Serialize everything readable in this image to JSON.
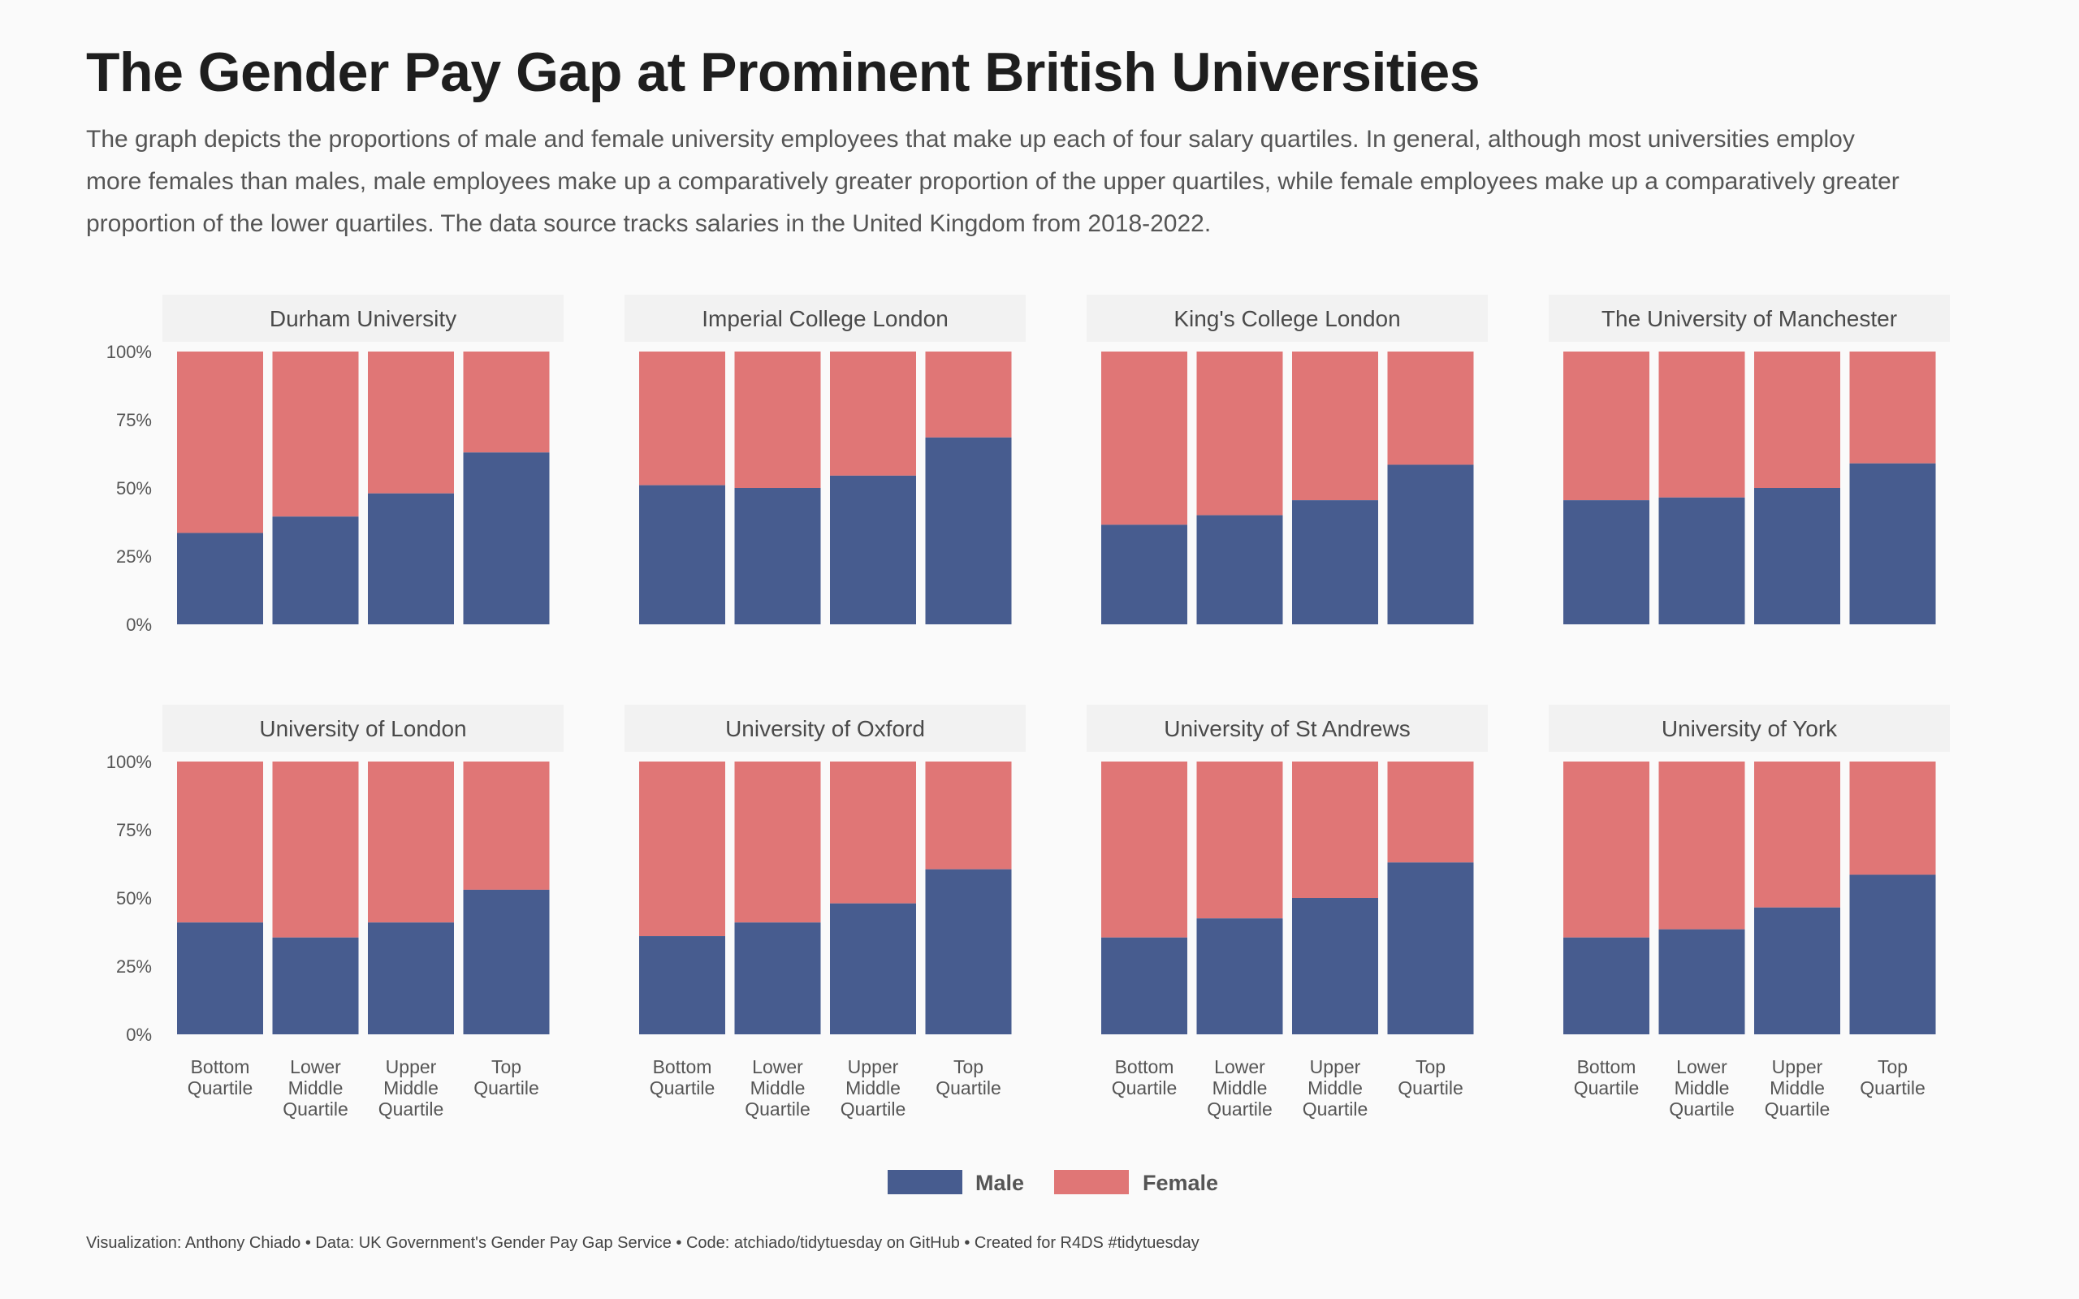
{
  "title": "The Gender Pay Gap at Prominent British Universities",
  "subtitle": "The graph depicts the proportions of male and female university employees that make up each of four salary quartiles. In general, although most universities employ more females than males, male employees make up a comparatively greater proportion of the upper quartiles, while female employees make up a comparatively greater proportion of the lower quartiles. The data source tracks salaries in the United Kingdom from 2018-2022.",
  "caption": "Visualization: Anthony Chiado  •  Data: UK Government's Gender Pay Gap Service  •  Code: atchiado/tidytuesday on GitHub  • Created for R4DS #tidytuesday",
  "colors": {
    "male": "#475c8f",
    "female": "#e07676",
    "strip": "#f2f2f2",
    "text": "#555555"
  },
  "chart_data": {
    "type": "bar",
    "stacked": true,
    "normalized": true,
    "categories": [
      [
        "Bottom",
        "Quartile"
      ],
      [
        "Lower",
        "Middle",
        "Quartile"
      ],
      [
        "Upper",
        "Middle",
        "Quartile"
      ],
      [
        "Top",
        "Quartile"
      ]
    ],
    "yticks": [
      "0%",
      "25%",
      "50%",
      "75%",
      "100%"
    ],
    "ylim": [
      0,
      100
    ],
    "legend": {
      "position": "bottom",
      "entries": [
        "Male",
        "Female"
      ]
    },
    "panels": [
      {
        "name": "Durham University",
        "male": [
          33.5,
          39.5,
          48,
          63
        ],
        "female": [
          66.5,
          60.5,
          52,
          37
        ]
      },
      {
        "name": "Imperial College London",
        "male": [
          51,
          50,
          54.5,
          68.5
        ],
        "female": [
          49,
          50,
          45.5,
          31.5
        ]
      },
      {
        "name": "King's College London",
        "male": [
          36.5,
          40,
          45.5,
          58.5
        ],
        "female": [
          63.5,
          60,
          54.5,
          41.5
        ]
      },
      {
        "name": "The University of Manchester",
        "male": [
          45.5,
          46.5,
          50,
          59
        ],
        "female": [
          54.5,
          53.5,
          50,
          41
        ]
      },
      {
        "name": "University of London",
        "male": [
          41,
          35.5,
          41,
          53
        ],
        "female": [
          59,
          64.5,
          59,
          47
        ]
      },
      {
        "name": "University of Oxford",
        "male": [
          36,
          41,
          48,
          60.5
        ],
        "female": [
          64,
          59,
          52,
          39.5
        ]
      },
      {
        "name": "University of St Andrews",
        "male": [
          35.5,
          42.5,
          50,
          63
        ],
        "female": [
          64.5,
          57.5,
          50,
          37
        ]
      },
      {
        "name": "University of York",
        "male": [
          35.5,
          38.5,
          46.5,
          58.5
        ],
        "female": [
          64.5,
          61.5,
          53.5,
          41.5
        ]
      }
    ]
  }
}
